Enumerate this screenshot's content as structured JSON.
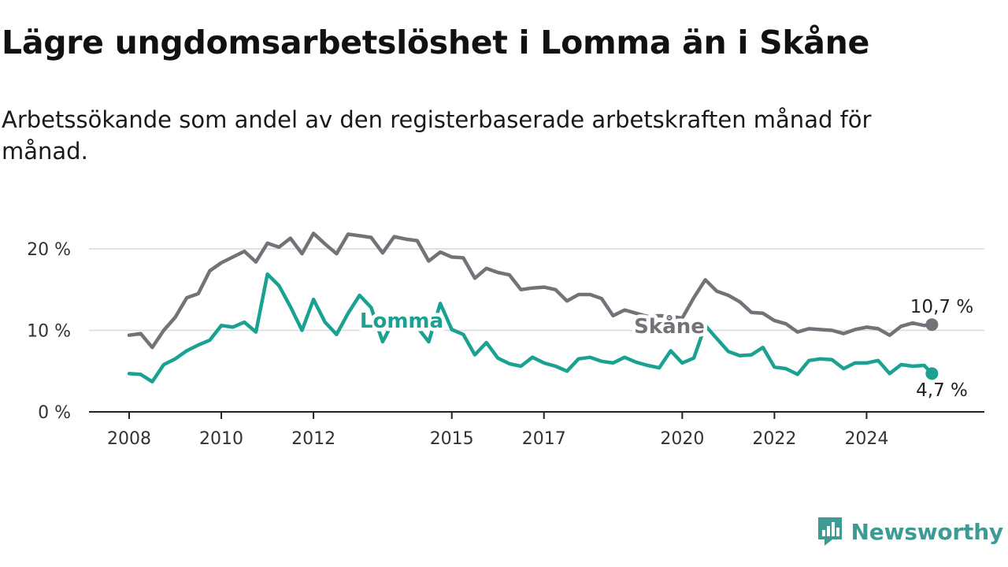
{
  "header": {
    "title": "Lägre ungdomsarbetslöshet i Lomma än i Skåne",
    "subtitle": "Arbetssökande som andel av den registerbaserade arbetskraften månad för månad."
  },
  "brand": {
    "logo_icon": "newsworthy-logo-icon",
    "name": "Newsworthy",
    "color": "#3d9b94"
  },
  "chart_data": {
    "type": "line",
    "title": "Lägre ungdomsarbetslöshet i Lomma än i Skåne",
    "subtitle": "Arbetssökande som andel av den registerbaserade arbetskraften månad för månad.",
    "xlabel": "",
    "ylabel": "",
    "xlim": [
      "2008-01",
      "2025-09"
    ],
    "ylim": [
      0,
      22
    ],
    "grid": true,
    "legend": "inline labels on lines",
    "x_ticks": [
      "2008",
      "2010",
      "2012",
      "2015",
      "2017",
      "2020",
      "2022",
      "2024"
    ],
    "y_ticks": [
      {
        "value": 0,
        "label": "0 %"
      },
      {
        "value": 10,
        "label": "10 %"
      },
      {
        "value": 20,
        "label": "20 %"
      }
    ],
    "series": [
      {
        "name": "Skåne",
        "color": "#737279",
        "end_label": "10,7 %",
        "points": [
          [
            "2008-01",
            9.4
          ],
          [
            "2008-04",
            9.6
          ],
          [
            "2008-07",
            7.9
          ],
          [
            "2008-10",
            10.0
          ],
          [
            "2009-01",
            11.6
          ],
          [
            "2009-04",
            14.0
          ],
          [
            "2009-07",
            14.5
          ],
          [
            "2009-10",
            17.3
          ],
          [
            "2010-01",
            18.3
          ],
          [
            "2010-04",
            19.0
          ],
          [
            "2010-07",
            19.7
          ],
          [
            "2010-10",
            18.4
          ],
          [
            "2011-01",
            20.7
          ],
          [
            "2011-04",
            20.2
          ],
          [
            "2011-07",
            21.3
          ],
          [
            "2011-10",
            19.4
          ],
          [
            "2012-01",
            21.9
          ],
          [
            "2012-04",
            20.6
          ],
          [
            "2012-07",
            19.4
          ],
          [
            "2012-10",
            21.8
          ],
          [
            "2013-01",
            21.6
          ],
          [
            "2013-04",
            21.4
          ],
          [
            "2013-07",
            19.5
          ],
          [
            "2013-10",
            21.5
          ],
          [
            "2014-01",
            21.2
          ],
          [
            "2014-04",
            21.0
          ],
          [
            "2014-07",
            18.5
          ],
          [
            "2014-10",
            19.6
          ],
          [
            "2015-01",
            19.0
          ],
          [
            "2015-04",
            18.9
          ],
          [
            "2015-07",
            16.4
          ],
          [
            "2015-10",
            17.6
          ],
          [
            "2016-01",
            17.1
          ],
          [
            "2016-04",
            16.8
          ],
          [
            "2016-07",
            15.0
          ],
          [
            "2016-10",
            15.2
          ],
          [
            "2017-01",
            15.3
          ],
          [
            "2017-04",
            15.0
          ],
          [
            "2017-07",
            13.6
          ],
          [
            "2017-10",
            14.4
          ],
          [
            "2018-01",
            14.4
          ],
          [
            "2018-04",
            13.9
          ],
          [
            "2018-07",
            11.8
          ],
          [
            "2018-10",
            12.5
          ],
          [
            "2019-01",
            12.1
          ],
          [
            "2019-04",
            11.7
          ],
          [
            "2019-07",
            11.8
          ],
          [
            "2019-10",
            11.7
          ],
          [
            "2020-01",
            11.5
          ],
          [
            "2020-04",
            14.0
          ],
          [
            "2020-07",
            16.2
          ],
          [
            "2020-10",
            14.8
          ],
          [
            "2021-01",
            14.3
          ],
          [
            "2021-04",
            13.5
          ],
          [
            "2021-07",
            12.2
          ],
          [
            "2021-10",
            12.1
          ],
          [
            "2022-01",
            11.2
          ],
          [
            "2022-04",
            10.8
          ],
          [
            "2022-07",
            9.8
          ],
          [
            "2022-10",
            10.2
          ],
          [
            "2023-01",
            10.1
          ],
          [
            "2023-04",
            10.0
          ],
          [
            "2023-07",
            9.6
          ],
          [
            "2023-10",
            10.1
          ],
          [
            "2024-01",
            10.4
          ],
          [
            "2024-04",
            10.2
          ],
          [
            "2024-07",
            9.4
          ],
          [
            "2024-10",
            10.5
          ],
          [
            "2025-01",
            10.9
          ],
          [
            "2025-04",
            10.6
          ],
          [
            "2025-06",
            10.7
          ]
        ]
      },
      {
        "name": "Lomma",
        "color": "#1aa192",
        "end_label": "4,7 %",
        "points": [
          [
            "2008-01",
            4.7
          ],
          [
            "2008-04",
            4.6
          ],
          [
            "2008-07",
            3.7
          ],
          [
            "2008-10",
            5.8
          ],
          [
            "2009-01",
            6.5
          ],
          [
            "2009-04",
            7.5
          ],
          [
            "2009-07",
            8.2
          ],
          [
            "2009-10",
            8.8
          ],
          [
            "2010-01",
            10.6
          ],
          [
            "2010-04",
            10.4
          ],
          [
            "2010-07",
            11.0
          ],
          [
            "2010-10",
            9.8
          ],
          [
            "2011-01",
            16.9
          ],
          [
            "2011-04",
            15.5
          ],
          [
            "2011-07",
            12.9
          ],
          [
            "2011-10",
            10.0
          ],
          [
            "2012-01",
            13.8
          ],
          [
            "2012-04",
            11.0
          ],
          [
            "2012-07",
            9.5
          ],
          [
            "2012-10",
            12.1
          ],
          [
            "2013-01",
            14.3
          ],
          [
            "2013-04",
            12.8
          ],
          [
            "2013-07",
            8.6
          ],
          [
            "2013-10",
            11.3
          ],
          [
            "2014-01",
            10.8
          ],
          [
            "2014-04",
            10.4
          ],
          [
            "2014-07",
            8.6
          ],
          [
            "2014-10",
            13.3
          ],
          [
            "2015-01",
            10.1
          ],
          [
            "2015-04",
            9.5
          ],
          [
            "2015-07",
            7.0
          ],
          [
            "2015-10",
            8.5
          ],
          [
            "2016-01",
            6.6
          ],
          [
            "2016-04",
            5.9
          ],
          [
            "2016-07",
            5.6
          ],
          [
            "2016-10",
            6.7
          ],
          [
            "2017-01",
            6.0
          ],
          [
            "2017-04",
            5.6
          ],
          [
            "2017-07",
            5.0
          ],
          [
            "2017-10",
            6.5
          ],
          [
            "2018-01",
            6.7
          ],
          [
            "2018-04",
            6.2
          ],
          [
            "2018-07",
            6.0
          ],
          [
            "2018-10",
            6.7
          ],
          [
            "2019-01",
            6.1
          ],
          [
            "2019-04",
            5.7
          ],
          [
            "2019-07",
            5.4
          ],
          [
            "2019-10",
            7.5
          ],
          [
            "2020-01",
            6.0
          ],
          [
            "2020-04",
            6.6
          ],
          [
            "2020-07",
            10.6
          ],
          [
            "2020-10",
            9.0
          ],
          [
            "2021-01",
            7.4
          ],
          [
            "2021-04",
            6.9
          ],
          [
            "2021-07",
            7.0
          ],
          [
            "2021-10",
            7.9
          ],
          [
            "2022-01",
            5.5
          ],
          [
            "2022-04",
            5.3
          ],
          [
            "2022-07",
            4.6
          ],
          [
            "2022-10",
            6.3
          ],
          [
            "2023-01",
            6.5
          ],
          [
            "2023-04",
            6.4
          ],
          [
            "2023-07",
            5.3
          ],
          [
            "2023-10",
            6.0
          ],
          [
            "2024-01",
            6.0
          ],
          [
            "2024-04",
            6.3
          ],
          [
            "2024-07",
            4.7
          ],
          [
            "2024-10",
            5.8
          ],
          [
            "2025-01",
            5.6
          ],
          [
            "2025-04",
            5.7
          ],
          [
            "2025-06",
            4.7
          ]
        ]
      }
    ]
  }
}
